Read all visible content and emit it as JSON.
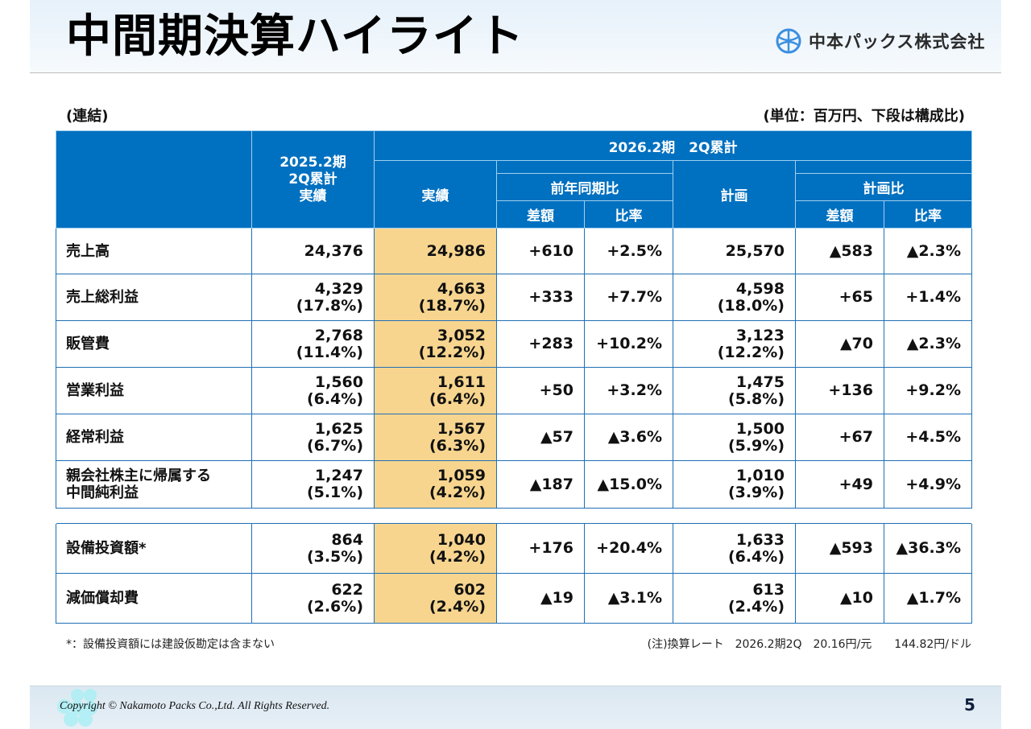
{
  "header": {
    "title": "中間期決算ハイライト",
    "company_logo_text": "中本パックス株式会社",
    "logo_icon": "company-emblem-icon"
  },
  "labels": {
    "scope": "(連結)",
    "unit": "(単位：百万円、下段は構成比)"
  },
  "table": {
    "headers": {
      "prev_period": [
        "2025.2期",
        "2Q累計",
        "実績"
      ],
      "current_period": "2026.2期　2Q累計",
      "actual": "実績",
      "yoy": "前年同期比",
      "plan": "計画",
      "vs_plan": "計画比",
      "diff": "差額",
      "ratio": "比率"
    },
    "rows": [
      {
        "label": "売上高",
        "prev": "24,376",
        "prev_pct": "",
        "actual": "24,986",
        "actual_pct": "",
        "yoy_diff": "+610",
        "yoy_ratio": "+2.5%",
        "plan": "25,570",
        "plan_pct": "",
        "plan_diff": "▲583",
        "plan_ratio": "▲2.3%"
      },
      {
        "label": "売上総利益",
        "prev": "4,329",
        "prev_pct": "(17.8%)",
        "actual": "4,663",
        "actual_pct": "(18.7%)",
        "yoy_diff": "+333",
        "yoy_ratio": "+7.7%",
        "plan": "4,598",
        "plan_pct": "(18.0%)",
        "plan_diff": "+65",
        "plan_ratio": "+1.4%"
      },
      {
        "label": "販管費",
        "prev": "2,768",
        "prev_pct": "(11.4%)",
        "actual": "3,052",
        "actual_pct": "(12.2%)",
        "yoy_diff": "+283",
        "yoy_ratio": "+10.2%",
        "plan": "3,123",
        "plan_pct": "(12.2%)",
        "plan_diff": "▲70",
        "plan_ratio": "▲2.3%"
      },
      {
        "label": "営業利益",
        "prev": "1,560",
        "prev_pct": "(6.4%)",
        "actual": "1,611",
        "actual_pct": "(6.4%)",
        "yoy_diff": "+50",
        "yoy_ratio": "+3.2%",
        "plan": "1,475",
        "plan_pct": "(5.8%)",
        "plan_diff": "+136",
        "plan_ratio": "+9.2%"
      },
      {
        "label": "経常利益",
        "prev": "1,625",
        "prev_pct": "(6.7%)",
        "actual": "1,567",
        "actual_pct": "(6.3%)",
        "yoy_diff": "▲57",
        "yoy_ratio": "▲3.6%",
        "plan": "1,500",
        "plan_pct": "(5.9%)",
        "plan_diff": "+67",
        "plan_ratio": "+4.5%"
      },
      {
        "label": "親会社株主に帰属する",
        "label2": "中間純利益",
        "prev": "1,247",
        "prev_pct": "(5.1%)",
        "actual": "1,059",
        "actual_pct": "(4.2%)",
        "yoy_diff": "▲187",
        "yoy_ratio": "▲15.0%",
        "plan": "1,010",
        "plan_pct": "(3.9%)",
        "plan_diff": "+49",
        "plan_ratio": "+4.9%"
      }
    ],
    "rows2": [
      {
        "label": "設備投資額*",
        "prev": "864",
        "prev_pct": "(3.5%)",
        "actual": "1,040",
        "actual_pct": "(4.2%)",
        "yoy_diff": "+176",
        "yoy_ratio": "+20.4%",
        "plan": "1,633",
        "plan_pct": "(6.4%)",
        "plan_diff": "▲593",
        "plan_ratio": "▲36.3%"
      },
      {
        "label": "減価償却費",
        "prev": "622",
        "prev_pct": "(2.6%)",
        "actual": "602",
        "actual_pct": "(2.4%)",
        "yoy_diff": "▲19",
        "yoy_ratio": "▲3.1%",
        "plan": "613",
        "plan_pct": "(2.4%)",
        "plan_diff": "▲10",
        "plan_ratio": "▲1.7%"
      }
    ]
  },
  "footnotes": {
    "left": "*：設備投資額には建設仮勘定は含まない",
    "right": "(注)換算レート　2026.2期2Q　20.16円/元　　144.82円/ドル"
  },
  "footer": {
    "copyright": "Copyright © Nakamoto Packs Co.,Ltd. All Rights Reserved.",
    "page_number": "5"
  },
  "colors": {
    "header_blue": "#0070c0",
    "highlight": "#f7d58f",
    "border_blue": "#1f6fb5"
  }
}
